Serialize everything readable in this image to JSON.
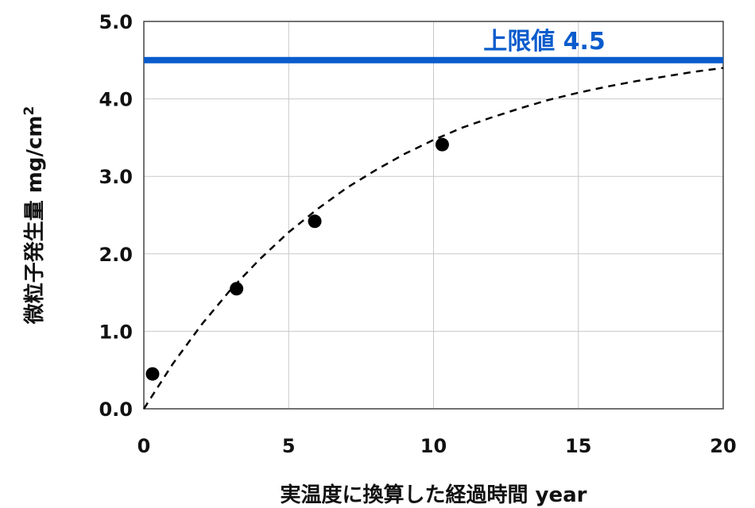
{
  "chart_data": {
    "type": "scatter",
    "xlabel": "実温度に換算した経過時間 year",
    "ylabel_main": "微粒子発生量 mg/cm",
    "ylabel_sup": "2",
    "xlim": [
      0,
      20
    ],
    "ylim": [
      0,
      5
    ],
    "x_ticks": [
      "0",
      "5",
      "10",
      "15",
      "20"
    ],
    "y_ticks": [
      "0.0",
      "1.0",
      "2.0",
      "3.0",
      "4.0",
      "5.0"
    ],
    "grid": true,
    "series": [
      {
        "marker": "circle",
        "color": "#000000",
        "x": [
          0.3,
          3.2,
          5.9,
          10.3
        ],
        "y": [
          0.45,
          1.55,
          2.42,
          3.41
        ]
      }
    ],
    "fit_curve": {
      "style": "dashed",
      "color": "#000000",
      "x": [
        0,
        1,
        2,
        3,
        4,
        5,
        6,
        7,
        8,
        9,
        10,
        11,
        12,
        13,
        14,
        15,
        16,
        17,
        18,
        19,
        20
      ],
      "y": [
        0.0,
        0.58,
        1.09,
        1.54,
        1.93,
        2.28,
        2.58,
        2.85,
        3.08,
        3.29,
        3.47,
        3.63,
        3.76,
        3.88,
        3.99,
        4.08,
        4.16,
        4.23,
        4.29,
        4.35,
        4.4
      ]
    },
    "limit_line": {
      "y": 4.5,
      "label": "上限値 4.5",
      "color": "#0a5ccc"
    }
  }
}
